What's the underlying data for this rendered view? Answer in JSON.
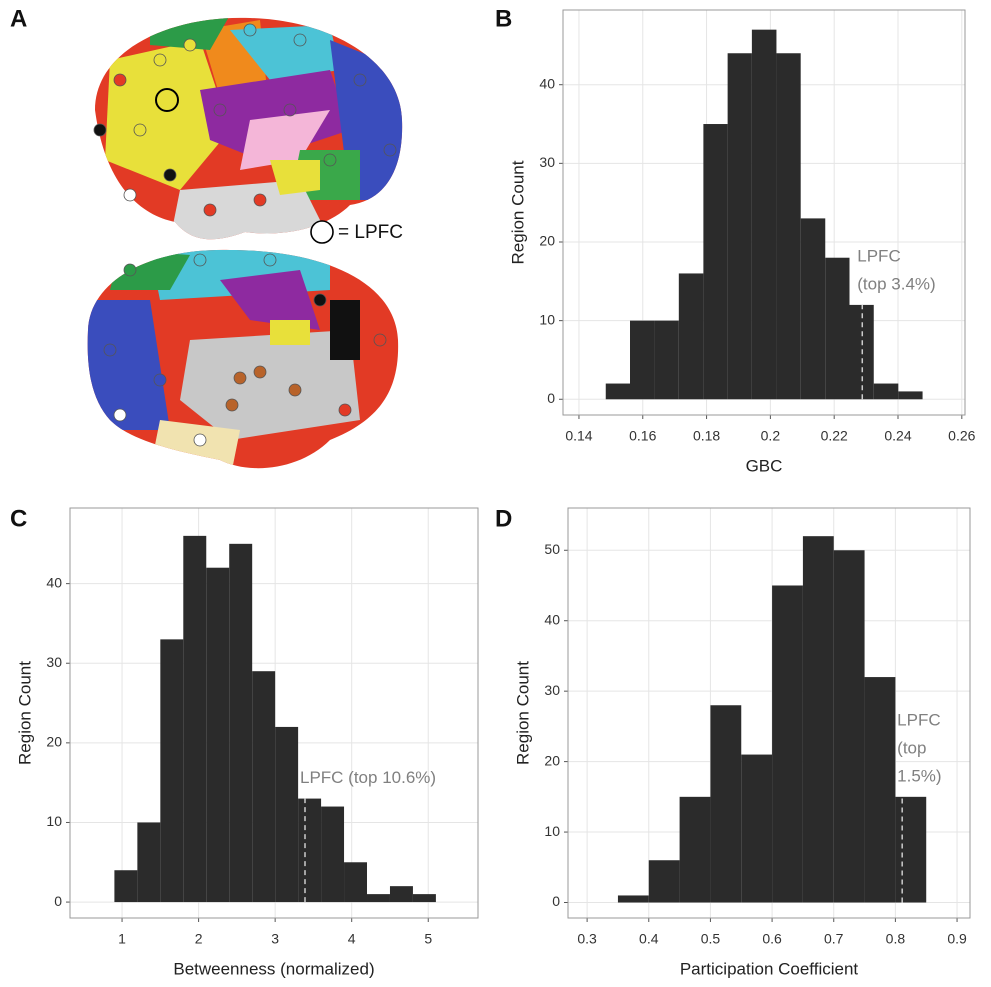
{
  "brain_panel": {
    "panel": "A",
    "legend": "= LPFC"
  },
  "chart_data": [
    {
      "type": "histogram",
      "panel": "B",
      "xlabel": "GBC",
      "ylabel": "Region Count",
      "color": "#2b2b2b",
      "grid": true,
      "bins": [
        0.1484,
        0.156,
        0.1637,
        0.1713,
        0.179,
        0.1866,
        0.1942,
        0.2019,
        0.2095,
        0.2172,
        0.2248,
        0.2324,
        0.2401,
        0.2477
      ],
      "counts": [
        2,
        10,
        10,
        16,
        35,
        44,
        47,
        44,
        23,
        18,
        12,
        2,
        1
      ],
      "xlim": [
        0.135,
        0.261
      ],
      "xticks": [
        0.14,
        0.16,
        0.18,
        0.2,
        0.22,
        0.24,
        0.26
      ],
      "ylim": [
        -2,
        49.5
      ],
      "yticks": [
        0,
        10,
        20,
        30,
        40
      ],
      "annotations": [
        {
          "x": 0.2288,
          "lines": [
            "LPFC",
            "(top 3.4%)"
          ]
        }
      ]
    },
    {
      "type": "histogram",
      "panel": "C",
      "xlabel": "Betweenness (normalized)",
      "ylabel": "Region Count",
      "color": "#2b2b2b",
      "grid": true,
      "bins": [
        0.9,
        1.2,
        1.5,
        1.8,
        2.1,
        2.4,
        2.7,
        3.0,
        3.3,
        3.6,
        3.9,
        4.2,
        4.5,
        4.8,
        5.1
      ],
      "counts": [
        4,
        10,
        33,
        46,
        42,
        45,
        29,
        22,
        13,
        12,
        5,
        1,
        2,
        1
      ],
      "xlim": [
        0.32,
        5.65
      ],
      "xticks": [
        1,
        2,
        3,
        4,
        5
      ],
      "ylim": [
        -2,
        49.5
      ],
      "yticks": [
        0,
        10,
        20,
        30,
        40
      ],
      "annotations": [
        {
          "x": 3.39,
          "lines": [
            "LPFC (top 10.6%)"
          ]
        }
      ]
    },
    {
      "type": "histogram",
      "panel": "D",
      "xlabel": "Participation Coefficient",
      "ylabel": "Region Count",
      "color": "#2b2b2b",
      "grid": true,
      "bins": [
        0.35,
        0.4,
        0.45,
        0.5,
        0.55,
        0.6,
        0.65,
        0.7,
        0.75,
        0.8,
        0.85
      ],
      "counts": [
        1,
        6,
        15,
        28,
        21,
        45,
        52,
        50,
        32,
        15
      ],
      "xlim": [
        0.269,
        0.921
      ],
      "xticks": [
        0.3,
        0.4,
        0.5,
        0.6,
        0.7,
        0.8,
        0.9
      ],
      "ylim": [
        -2.2,
        56
      ],
      "yticks": [
        0,
        10,
        20,
        30,
        40,
        50
      ],
      "annotations": [
        {
          "x": 0.811,
          "lines": [
            "LPFC",
            "(top",
            "1.5%)"
          ]
        }
      ]
    }
  ]
}
